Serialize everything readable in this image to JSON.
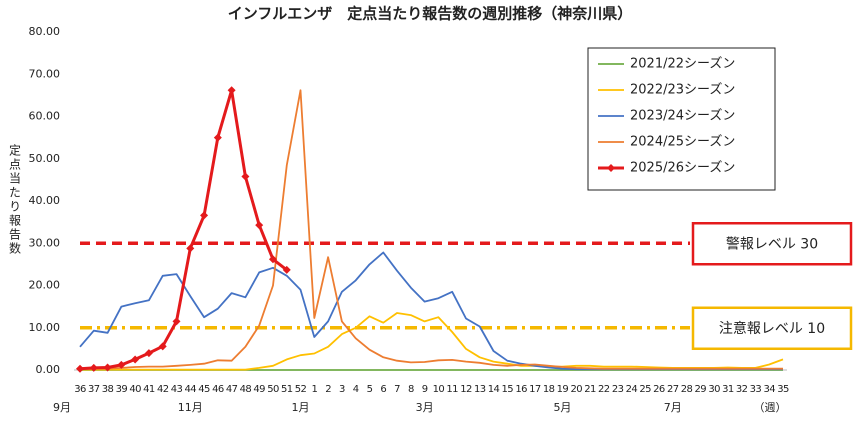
{
  "chart_data": {
    "type": "line",
    "title": "インフルエンザ　定点当たり報告数の週別推移（神奈川県）",
    "y_label": "定点当たり報告数",
    "x_unit": "（週）",
    "categories": [
      "36",
      "37",
      "38",
      "39",
      "40",
      "41",
      "42",
      "43",
      "44",
      "45",
      "46",
      "47",
      "48",
      "49",
      "50",
      "51",
      "52",
      "1",
      "2",
      "3",
      "4",
      "5",
      "6",
      "7",
      "8",
      "9",
      "10",
      "11",
      "12",
      "13",
      "14",
      "15",
      "16",
      "17",
      "18",
      "19",
      "20",
      "21",
      "22",
      "23",
      "24",
      "25",
      "26",
      "27",
      "28",
      "29",
      "30",
      "31",
      "32",
      "33",
      "34",
      "35"
    ],
    "month_labels": [
      "9月",
      null,
      null,
      null,
      null,
      null,
      null,
      null,
      "11月",
      null,
      null,
      null,
      null,
      null,
      null,
      null,
      "1月",
      null,
      null,
      null,
      null,
      null,
      null,
      null,
      null,
      "3月",
      null,
      null,
      null,
      null,
      null,
      null,
      null,
      null,
      null,
      "5月",
      null,
      null,
      null,
      null,
      null,
      null,
      null,
      "7月",
      null,
      null,
      null,
      null,
      null,
      null,
      null,
      null
    ],
    "ylim": [
      0,
      80
    ],
    "yticks": [
      {
        "value": 0,
        "label": "0.00"
      },
      {
        "value": 10,
        "label": "10.00"
      },
      {
        "value": 20,
        "label": "20.00"
      },
      {
        "value": 30,
        "label": "30.00"
      },
      {
        "value": 40,
        "label": "40.00"
      },
      {
        "value": 50,
        "label": "50.00"
      },
      {
        "value": 60,
        "label": "60.00"
      },
      {
        "value": 70,
        "label": "70.00"
      },
      {
        "value": 80,
        "label": "80.00"
      }
    ],
    "grid": false,
    "legend": "upper right",
    "thresholds": [
      {
        "label": "警報レベル 30",
        "value": 30,
        "color": "#e41a1c",
        "style": "dashed"
      },
      {
        "label": "注意報レベル 10",
        "value": 10,
        "color": "#f5b800",
        "style": "dashdot"
      }
    ],
    "series": [
      {
        "name": "2021/22シーズン",
        "color": "#70ad47",
        "values": [
          0,
          0,
          0,
          0,
          0,
          0,
          0,
          0,
          0,
          0,
          0,
          0,
          0,
          0,
          0,
          0,
          0,
          0,
          0,
          0,
          0,
          0,
          0,
          0,
          0,
          0,
          0,
          0,
          0,
          0,
          0,
          0,
          0,
          0,
          0,
          0,
          0,
          0,
          0,
          0,
          0,
          0,
          0,
          0,
          0,
          0,
          0,
          0,
          0,
          0,
          0,
          0
        ]
      },
      {
        "name": "2022/23シーズン",
        "color": "#ffc000",
        "values": [
          0.1,
          0.1,
          0.1,
          0.1,
          0.1,
          0.1,
          0.1,
          0.1,
          0.1,
          0.1,
          0.1,
          0.1,
          0.1,
          0.5,
          1,
          2.5,
          3.5,
          3.9,
          5.5,
          8.5,
          10,
          12.7,
          11.2,
          13.5,
          13,
          11.5,
          12.5,
          9,
          5,
          3,
          2,
          1.5,
          1,
          1,
          0.8,
          0.8,
          1,
          1,
          0.8,
          0.8,
          0.8,
          0.7,
          0.6,
          0.5,
          0.5,
          0.5,
          0.5,
          0.6,
          0.5,
          0.5,
          1.3,
          2.5
        ]
      },
      {
        "name": "2023/24シーズン",
        "color": "#4472c4",
        "values": [
          5.5,
          9.3,
          8.8,
          15,
          15.8,
          16.5,
          22.3,
          22.7,
          17.5,
          12.5,
          14.5,
          18.2,
          17.2,
          23.1,
          24.2,
          22.3,
          19,
          7.8,
          11.5,
          18.5,
          21.2,
          25,
          27.8,
          23.5,
          19.5,
          16.2,
          17,
          18.5,
          12.2,
          10.3,
          4.5,
          2.2,
          1.5,
          1,
          0.6,
          0.3,
          0.2,
          0.2,
          0.2,
          0.2,
          0.2,
          0.2,
          0.2,
          0.2,
          0.2,
          0.2,
          0.2,
          0.2,
          0.2,
          0.2,
          0.2,
          0.2
        ]
      },
      {
        "name": "2024/25シーズン",
        "color": "#ed7d31",
        "values": [
          0.2,
          0.3,
          0.3,
          0.5,
          0.7,
          0.8,
          0.8,
          1,
          1.2,
          1.5,
          2.3,
          2.2,
          5.5,
          10.5,
          20,
          48.5,
          66.2,
          12.3,
          26.7,
          11.5,
          7.5,
          4.8,
          3,
          2.2,
          1.8,
          1.9,
          2.3,
          2.4,
          2,
          1.7,
          1.2,
          1,
          1.2,
          1.3,
          1,
          0.7,
          0.5,
          0.4,
          0.3,
          0.3,
          0.3,
          0.3,
          0.3,
          0.3,
          0.3,
          0.3,
          0.3,
          0.3,
          0.3,
          0.3,
          0.3,
          0.3
        ]
      },
      {
        "name": "2025/26シーズン",
        "color": "#e41a1c",
        "marker": "diamond",
        "values": [
          0.3,
          0.5,
          0.6,
          1.2,
          2.5,
          4,
          5.6,
          11.5,
          28.8,
          36.6,
          55,
          66.2,
          45.8,
          34.3,
          26.2,
          23.7,
          null,
          null,
          null,
          null,
          null,
          null,
          null,
          null,
          null,
          null,
          null,
          null,
          null,
          null,
          null,
          null,
          null,
          null,
          null,
          null,
          null,
          null,
          null,
          null,
          null,
          null,
          null,
          null,
          null,
          null,
          null,
          null,
          null,
          null,
          null,
          null
        ]
      }
    ]
  }
}
